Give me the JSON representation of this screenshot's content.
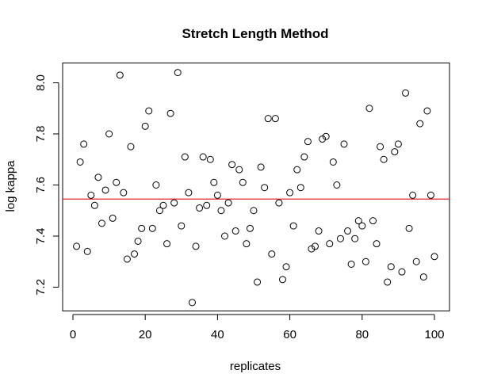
{
  "chart_data": {
    "type": "scatter",
    "title": "Stretch Length Method",
    "xlabel": "replicates",
    "ylabel": "log kappa",
    "xlim": [
      0,
      103
    ],
    "ylim": [
      7.13,
      8.08
    ],
    "xticks": [
      0,
      20,
      40,
      60,
      80,
      100
    ],
    "xtick_labels": [
      "0",
      "20",
      "40",
      "60",
      "80",
      "100"
    ],
    "yticks": [
      7.2,
      7.4,
      7.6,
      7.8,
      8.0
    ],
    "ytick_labels": [
      "7.2",
      "7.4",
      "7.6",
      "7.8",
      "8.0"
    ],
    "grid": false,
    "legend": "none",
    "hline": {
      "y": 7.545,
      "color": "#e8212b"
    },
    "marker_color": "#000000",
    "series": [
      {
        "x": [
          1,
          2,
          3,
          4,
          5,
          6,
          7,
          8,
          9,
          10,
          11,
          12,
          13,
          14,
          15,
          16,
          17,
          18,
          19,
          20,
          21,
          22,
          23,
          24,
          25,
          26,
          27,
          28,
          29,
          30,
          31,
          32,
          33,
          34,
          35,
          36,
          37,
          38,
          39,
          40,
          41,
          42,
          43,
          44,
          45,
          46,
          47,
          48,
          49,
          50,
          51,
          52,
          53,
          54,
          55,
          56,
          57,
          58,
          59,
          60,
          61,
          62,
          63,
          64,
          65,
          66,
          67,
          68,
          69,
          70,
          71,
          72,
          73,
          74,
          75,
          76,
          77,
          78,
          79,
          80,
          81,
          82,
          83,
          84,
          85,
          86,
          87,
          88,
          89,
          90,
          91,
          92,
          93,
          94,
          95,
          96,
          97,
          98,
          99,
          100
        ],
        "y": [
          7.36,
          7.69,
          7.76,
          7.34,
          7.56,
          7.52,
          7.63,
          7.45,
          7.58,
          7.8,
          7.47,
          7.61,
          8.03,
          7.57,
          7.31,
          7.75,
          7.33,
          7.38,
          7.43,
          7.83,
          7.89,
          7.43,
          7.6,
          7.5,
          7.52,
          7.37,
          7.88,
          7.53,
          8.04,
          7.44,
          7.71,
          7.57,
          7.14,
          7.36,
          7.51,
          7.71,
          7.52,
          7.7,
          7.61,
          7.56,
          7.5,
          7.4,
          7.53,
          7.68,
          7.42,
          7.66,
          7.61,
          7.37,
          7.43,
          7.5,
          7.22,
          7.67,
          7.59,
          7.86,
          7.33,
          7.86,
          7.53,
          7.23,
          7.28,
          7.57,
          7.44,
          7.66,
          7.59,
          7.71,
          7.77,
          7.35,
          7.36,
          7.42,
          7.78,
          7.79,
          7.37,
          7.69,
          7.6,
          7.39,
          7.76,
          7.42,
          7.29,
          7.39,
          7.46,
          7.44,
          7.3,
          7.9,
          7.46,
          7.37,
          7.75,
          7.7,
          7.22,
          7.28,
          7.73,
          7.76,
          7.26,
          7.96,
          7.43,
          7.56,
          7.3,
          7.84,
          7.24,
          7.89,
          7.56,
          7.32
        ]
      }
    ]
  }
}
